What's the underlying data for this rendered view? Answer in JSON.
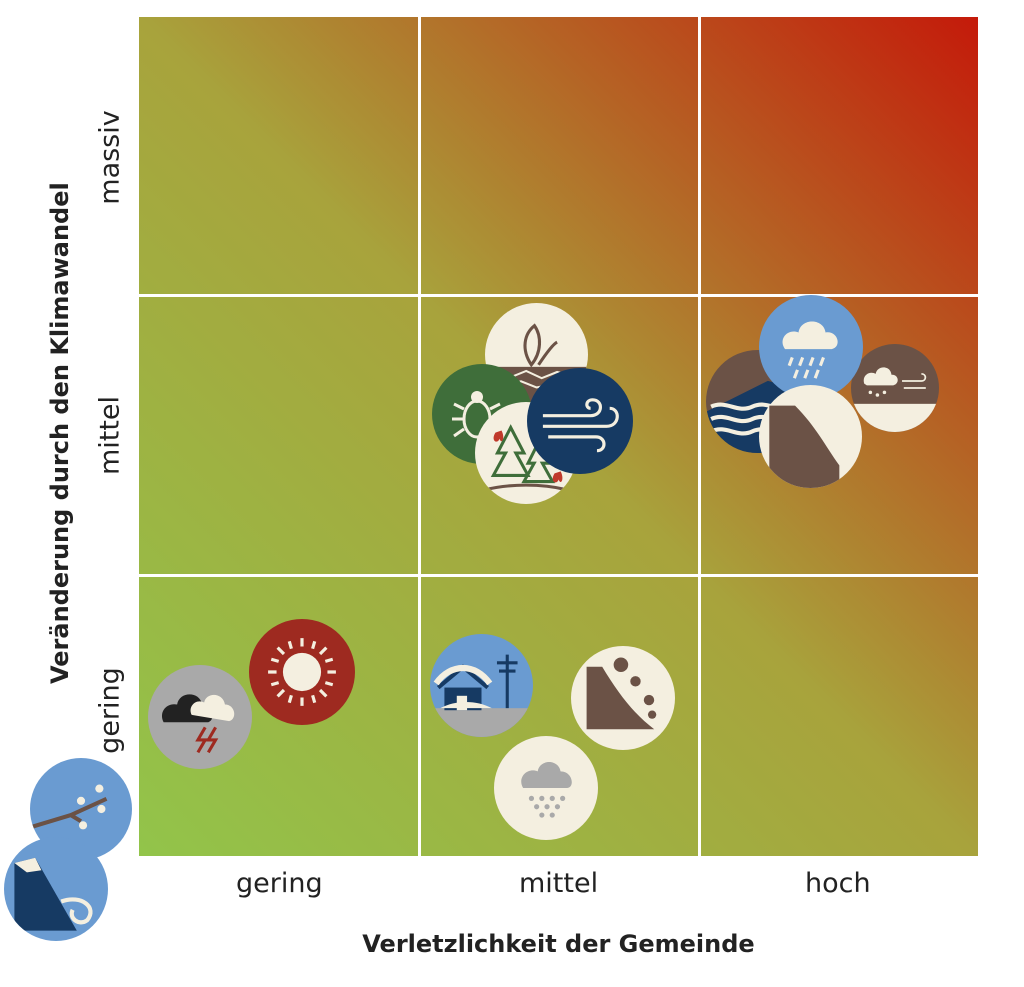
{
  "x_axis": {
    "title": "Verletzlichkeit der Gemeinde",
    "ticks": [
      "gering",
      "mittel",
      "hoch"
    ]
  },
  "y_axis": {
    "title": "Veränderung durch den Klimawandel",
    "ticks": [
      "gering",
      "mittel",
      "massiv"
    ]
  },
  "colors": {
    "low": "#92c44a",
    "mid": "#a8a33c",
    "high": "#c41a0a",
    "grid": "#ffffff"
  },
  "icons": [
    {
      "name": "drought-icon",
      "cell": "mittel/mittel"
    },
    {
      "name": "pest-icon",
      "cell": "mittel/mittel"
    },
    {
      "name": "forest-fire-icon",
      "cell": "mittel/mittel"
    },
    {
      "name": "storm-wind-icon",
      "cell": "mittel/mittel"
    },
    {
      "name": "heavy-rain-icon",
      "cell": "hoch/mittel"
    },
    {
      "name": "flood-icon",
      "cell": "hoch/mittel"
    },
    {
      "name": "hail-storm-icon",
      "cell": "hoch/mittel"
    },
    {
      "name": "landslide-icon",
      "cell": "hoch/mittel"
    },
    {
      "name": "heat-icon",
      "cell": "gering/gering"
    },
    {
      "name": "thunderstorm-icon",
      "cell": "gering/gering"
    },
    {
      "name": "snow-load-icon",
      "cell": "mittel/gering"
    },
    {
      "name": "rockfall-icon",
      "cell": "mittel/gering"
    },
    {
      "name": "snowfall-icon",
      "cell": "mittel/gering"
    },
    {
      "name": "frost-blossom-icon",
      "cell": "outside"
    },
    {
      "name": "avalanche-icon",
      "cell": "outside"
    }
  ]
}
